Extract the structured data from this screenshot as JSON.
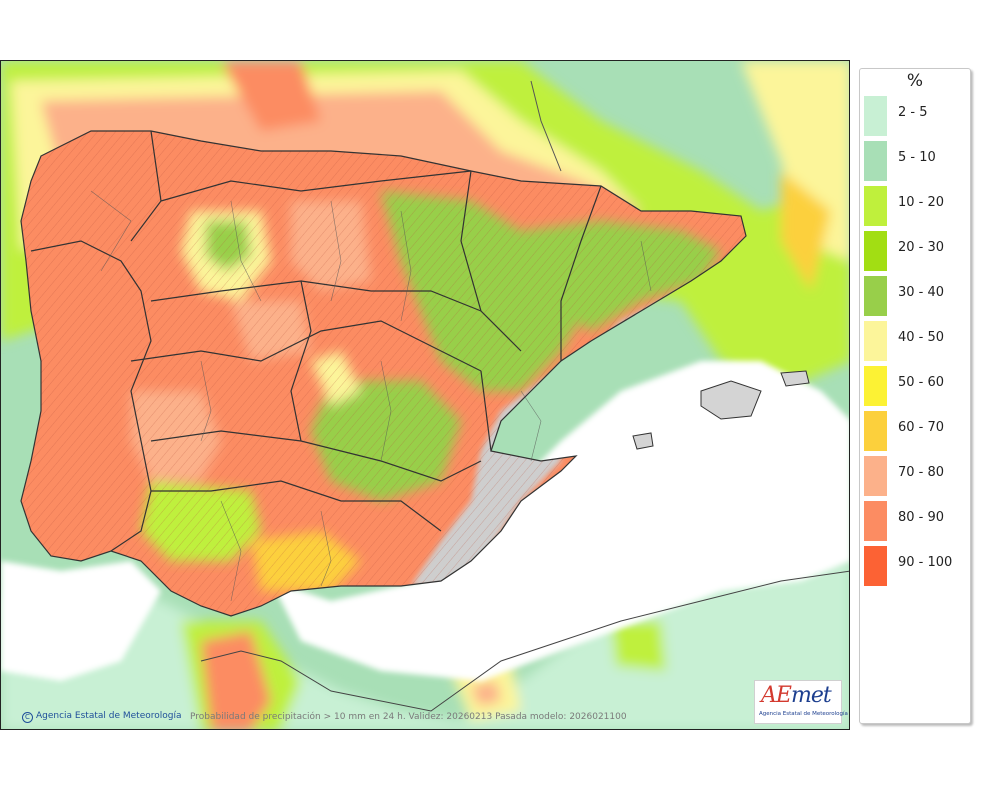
{
  "legend": {
    "title": "%",
    "items": [
      {
        "label": "2 - 5",
        "color": "#c8f0d4"
      },
      {
        "label": "5 - 10",
        "color": "#a8dfb6"
      },
      {
        "label": "10 - 20",
        "color": "#bff03c"
      },
      {
        "label": "20 - 30",
        "color": "#a2de13"
      },
      {
        "label": "30 - 40",
        "color": "#98cf4a"
      },
      {
        "label": "40 - 50",
        "color": "#fcf59a"
      },
      {
        "label": "50 - 60",
        "color": "#fcf234"
      },
      {
        "label": "60 - 70",
        "color": "#fcd03c"
      },
      {
        "label": "70 - 80",
        "color": "#fcb18a"
      },
      {
        "label": "80 - 90",
        "color": "#fc8c62"
      },
      {
        "label": "90 - 100",
        "color": "#fc6234"
      }
    ]
  },
  "footer": {
    "credit": "Agencia Estatal de Meteorología",
    "caption": "Probabilidad de precipitación > 10 mm en 24 h. Validez: 20260213 Pasada modelo: 2026021100"
  },
  "logo": {
    "word_main": "AE",
    "word_accent": "met",
    "subtitle": "Agencia Estatal de Meteorología"
  },
  "map": {
    "sea_color": "#ffffff",
    "relief_color": "#cfcfcf",
    "border_color": "#333333",
    "zones": [
      {
        "name": "northwest-high",
        "class": "90 - 100"
      },
      {
        "name": "central-plateau",
        "class": "80 - 90"
      },
      {
        "name": "ebro-valley",
        "class": "30 - 40"
      },
      {
        "name": "mediterranean-coast",
        "class": "2 - 5"
      }
    ]
  }
}
